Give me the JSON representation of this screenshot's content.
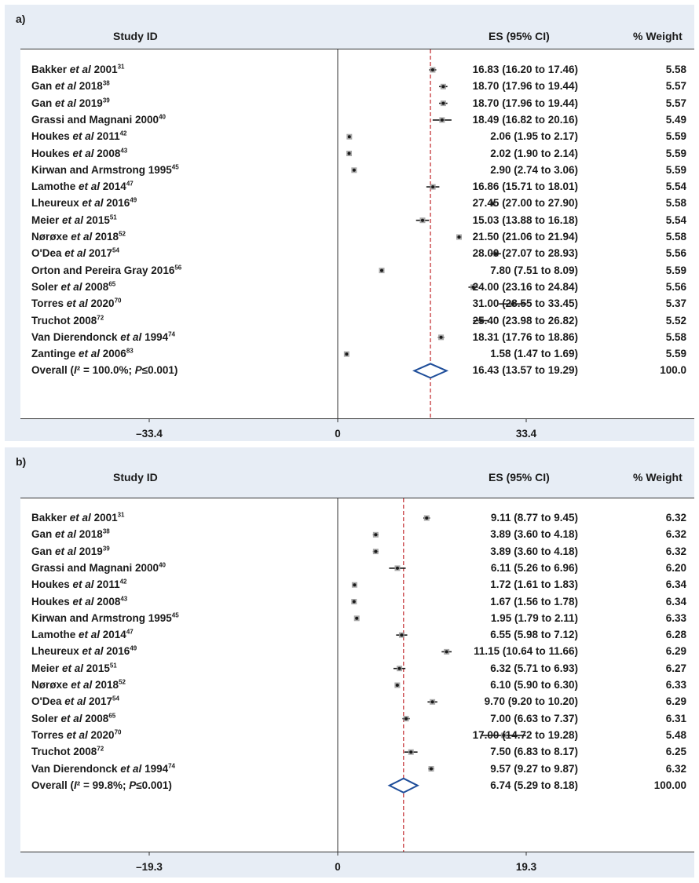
{
  "chart_data": [
    {
      "type": "forest",
      "panel_label": "a)",
      "columns": {
        "study": "Study ID",
        "es": "ES (95% CI)",
        "weight": "% Weight"
      },
      "studies": [
        {
          "name": "Bakker et al 2001",
          "sup": "31",
          "es": 16.83,
          "lo": 16.2,
          "hi": 17.46,
          "es_text": "16.83 (16.20 to 17.46)",
          "weight": "5.58"
        },
        {
          "name": "Gan et al 2018",
          "sup": "38",
          "es": 18.7,
          "lo": 17.96,
          "hi": 19.44,
          "es_text": "18.70 (17.96 to 19.44)",
          "weight": "5.57"
        },
        {
          "name": "Gan et al 2019",
          "sup": "39",
          "es": 18.7,
          "lo": 17.96,
          "hi": 19.44,
          "es_text": "18.70 (17.96 to 19.44)",
          "weight": "5.57"
        },
        {
          "name": "Grassi and Magnani 2000",
          "sup": "40",
          "es": 18.49,
          "lo": 16.82,
          "hi": 20.16,
          "es_text": "18.49 (16.82 to 20.16)",
          "weight": "5.49"
        },
        {
          "name": "Houkes et al 2011",
          "sup": "42",
          "es": 2.06,
          "lo": 1.95,
          "hi": 2.17,
          "es_text": "2.06 (1.95 to 2.17)",
          "weight": "5.59"
        },
        {
          "name": "Houkes et al 2008",
          "sup": "43",
          "es": 2.02,
          "lo": 1.9,
          "hi": 2.14,
          "es_text": "2.02 (1.90 to 2.14)",
          "weight": "5.59"
        },
        {
          "name": "Kirwan and Armstrong 1995",
          "sup": "45",
          "es": 2.9,
          "lo": 2.74,
          "hi": 3.06,
          "es_text": "2.90 (2.74 to 3.06)",
          "weight": "5.59"
        },
        {
          "name": "Lamothe et al 2014",
          "sup": "47",
          "es": 16.86,
          "lo": 15.71,
          "hi": 18.01,
          "es_text": "16.86 (15.71 to 18.01)",
          "weight": "5.54"
        },
        {
          "name": "Lheureux et al 2016",
          "sup": "49",
          "es": 27.45,
          "lo": 27.0,
          "hi": 27.9,
          "es_text": "27.45 (27.00 to 27.90)",
          "weight": "5.58"
        },
        {
          "name": "Meier et al 2015",
          "sup": "51",
          "es": 15.03,
          "lo": 13.88,
          "hi": 16.18,
          "es_text": "15.03 (13.88 to 16.18)",
          "weight": "5.54"
        },
        {
          "name": "Nørøxe et al 2018",
          "sup": "52",
          "es": 21.5,
          "lo": 21.06,
          "hi": 21.94,
          "es_text": "21.50 (21.06 to 21.94)",
          "weight": "5.58"
        },
        {
          "name": "O'Dea et al 2017",
          "sup": "54",
          "es": 28.0,
          "lo": 27.07,
          "hi": 28.93,
          "es_text": "28.00 (27.07 to 28.93)",
          "weight": "5.56"
        },
        {
          "name": "Orton and Pereira Gray 2016",
          "sup": "56",
          "es": 7.8,
          "lo": 7.51,
          "hi": 8.09,
          "es_text": "7.80 (7.51 to 8.09)",
          "weight": "5.59"
        },
        {
          "name": "Soler et al 2008",
          "sup": "65",
          "es": 24.0,
          "lo": 23.16,
          "hi": 24.84,
          "es_text": "24.00 (23.16 to 24.84)",
          "weight": "5.56"
        },
        {
          "name": "Torres et al 2020",
          "sup": "70",
          "es": 31.0,
          "lo": 28.55,
          "hi": 33.45,
          "es_text": "31.00 (28.55 to 33.45)",
          "weight": "5.37"
        },
        {
          "name": "Truchot 2008",
          "sup": "72",
          "es": 25.4,
          "lo": 23.98,
          "hi": 26.82,
          "es_text": "25.40 (23.98 to 26.82)",
          "weight": "5.52"
        },
        {
          "name": "Van Dierendonck et al 1994",
          "sup": "74",
          "es": 18.31,
          "lo": 17.76,
          "hi": 18.86,
          "es_text": "18.31 (17.76 to 18.86)",
          "weight": "5.58"
        },
        {
          "name": "Zantinge et al 2006",
          "sup": "83",
          "es": 1.58,
          "lo": 1.47,
          "hi": 1.69,
          "es_text": "1.58 (1.47 to 1.69)",
          "weight": "5.59"
        }
      ],
      "overall": {
        "label": "Overall (I² = 100.0%; P≤0.001)",
        "es": 16.43,
        "lo": 13.57,
        "hi": 19.29,
        "es_text": "16.43 (13.57 to 19.29)",
        "weight": "100.0"
      },
      "x_ticks": [
        {
          "value": -33.4,
          "label": "–33.4"
        },
        {
          "value": 0,
          "label": "0"
        },
        {
          "value": 33.4,
          "label": "33.4"
        }
      ],
      "null_line": 0,
      "xlim": [
        -33.4,
        33.4
      ]
    },
    {
      "type": "forest",
      "panel_label": "b)",
      "columns": {
        "study": "Study ID",
        "es": "ES (95% CI)",
        "weight": "% Weight"
      },
      "studies": [
        {
          "name": "Bakker et al 2001",
          "sup": "31",
          "es": 9.11,
          "lo": 8.77,
          "hi": 9.45,
          "es_text": "9.11 (8.77 to 9.45)",
          "weight": "6.32"
        },
        {
          "name": "Gan et al 2018",
          "sup": "38",
          "es": 3.89,
          "lo": 3.6,
          "hi": 4.18,
          "es_text": "3.89 (3.60 to 4.18)",
          "weight": "6.32"
        },
        {
          "name": "Gan et al 2019",
          "sup": "39",
          "es": 3.89,
          "lo": 3.6,
          "hi": 4.18,
          "es_text": "3.89 (3.60 to 4.18)",
          "weight": "6.32"
        },
        {
          "name": "Grassi and Magnani 2000",
          "sup": "40",
          "es": 6.11,
          "lo": 5.26,
          "hi": 6.96,
          "es_text": "6.11 (5.26 to 6.96)",
          "weight": "6.20"
        },
        {
          "name": "Houkes et al 2011",
          "sup": "42",
          "es": 1.72,
          "lo": 1.61,
          "hi": 1.83,
          "es_text": "1.72 (1.61 to 1.83)",
          "weight": "6.34"
        },
        {
          "name": "Houkes et al 2008",
          "sup": "43",
          "es": 1.67,
          "lo": 1.56,
          "hi": 1.78,
          "es_text": "1.67 (1.56 to 1.78)",
          "weight": "6.34"
        },
        {
          "name": "Kirwan and Armstrong 1995",
          "sup": "45",
          "es": 1.95,
          "lo": 1.79,
          "hi": 2.11,
          "es_text": "1.95 (1.79 to 2.11)",
          "weight": "6.33"
        },
        {
          "name": "Lamothe et al 2014",
          "sup": "47",
          "es": 6.55,
          "lo": 5.98,
          "hi": 7.12,
          "es_text": "6.55 (5.98 to 7.12)",
          "weight": "6.28"
        },
        {
          "name": "Lheureux et al 2016",
          "sup": "49",
          "es": 11.15,
          "lo": 10.64,
          "hi": 11.66,
          "es_text": "11.15 (10.64 to 11.66)",
          "weight": "6.29"
        },
        {
          "name": "Meier et al 2015",
          "sup": "51",
          "es": 6.32,
          "lo": 5.71,
          "hi": 6.93,
          "es_text": "6.32 (5.71 to 6.93)",
          "weight": "6.27"
        },
        {
          "name": "Nørøxe et al 2018",
          "sup": "52",
          "es": 6.1,
          "lo": 5.9,
          "hi": 6.3,
          "es_text": "6.10 (5.90 to 6.30)",
          "weight": "6.33"
        },
        {
          "name": "O'Dea et al 2017",
          "sup": "54",
          "es": 9.7,
          "lo": 9.2,
          "hi": 10.2,
          "es_text": "9.70 (9.20 to 10.20)",
          "weight": "6.29"
        },
        {
          "name": "Soler et al 2008",
          "sup": "65",
          "es": 7.0,
          "lo": 6.63,
          "hi": 7.37,
          "es_text": "7.00 (6.63 to 7.37)",
          "weight": "6.31"
        },
        {
          "name": "Torres et al 2020",
          "sup": "70",
          "es": 17.0,
          "lo": 14.72,
          "hi": 19.28,
          "es_text": "17.00 (14.72 to 19.28)",
          "weight": "5.48"
        },
        {
          "name": "Truchot 2008",
          "sup": "72",
          "es": 7.5,
          "lo": 6.83,
          "hi": 8.17,
          "es_text": "7.50 (6.83 to 8.17)",
          "weight": "6.25"
        },
        {
          "name": "Van Dierendonck et al 1994",
          "sup": "74",
          "es": 9.57,
          "lo": 9.27,
          "hi": 9.87,
          "es_text": "9.57 (9.27 to 9.87)",
          "weight": "6.32"
        }
      ],
      "overall": {
        "label": "Overall (I² = 99.8%; P≤0.001)",
        "es": 6.74,
        "lo": 5.29,
        "hi": 8.18,
        "es_text": "6.74 (5.29 to 8.18)",
        "weight": "100.00"
      },
      "x_ticks": [
        {
          "value": -19.3,
          "label": "–19.3"
        },
        {
          "value": 0,
          "label": "0"
        },
        {
          "value": 19.3,
          "label": "19.3"
        }
      ],
      "null_line": 0,
      "xlim": [
        -19.3,
        19.3
      ]
    }
  ],
  "colors": {
    "panel_bg": "#e7edf5",
    "diamond": "#1f4e9a",
    "overall_line": "#c0262b",
    "marker": "#1a1a1a",
    "marker_box": "#9a9a9a"
  }
}
